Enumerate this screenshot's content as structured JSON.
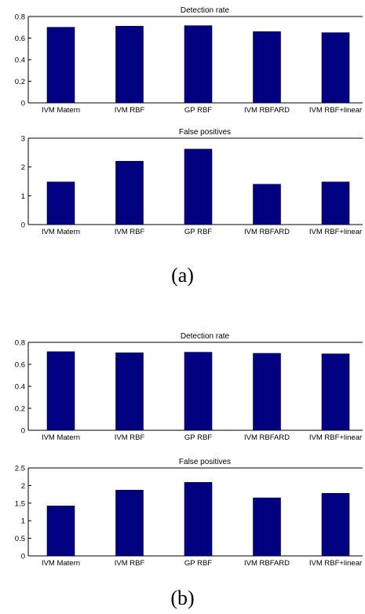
{
  "captions": {
    "a": "(a)",
    "b": "(b)"
  },
  "colors": {
    "bar": "#000080",
    "axis": "#000000"
  },
  "chart_data": [
    {
      "panel": "a",
      "type": "bar",
      "title": "Detection rate",
      "categories": [
        "IVM Matern",
        "IVM RBF",
        "GP RBF",
        "IVM RBFARD",
        "IVM RBF+linear"
      ],
      "values": [
        0.7,
        0.71,
        0.715,
        0.66,
        0.65
      ],
      "ylim": [
        0,
        0.8
      ],
      "yticks": [
        0,
        0.2,
        0.4,
        0.6,
        0.8
      ],
      "ytick_labels": [
        "0",
        "0.2",
        "0.4",
        "0.6",
        "0.8"
      ],
      "grid": false,
      "xlabel": "",
      "ylabel": ""
    },
    {
      "panel": "a",
      "type": "bar",
      "title": "False positives",
      "categories": [
        "IVM Matern",
        "IVM RBF",
        "GP RBF",
        "IVM RBFARD",
        "IVM RBF+linear"
      ],
      "values": [
        1.48,
        2.2,
        2.62,
        1.4,
        1.48
      ],
      "ylim": [
        0,
        3
      ],
      "yticks": [
        0,
        1,
        2,
        3
      ],
      "ytick_labels": [
        "0",
        "1",
        "2",
        "3"
      ],
      "grid": false,
      "xlabel": "",
      "ylabel": ""
    },
    {
      "panel": "b",
      "type": "bar",
      "title": "Detection rate",
      "categories": [
        "IVM Matern",
        "IVM RBF",
        "GP RBF",
        "IVM RBFARD",
        "IVM RBF+linear"
      ],
      "values": [
        0.715,
        0.705,
        0.71,
        0.7,
        0.695
      ],
      "ylim": [
        0,
        0.8
      ],
      "yticks": [
        0,
        0.2,
        0.4,
        0.6,
        0.8
      ],
      "ytick_labels": [
        "0",
        "0.2",
        "0.4",
        "0.6",
        "0.8"
      ],
      "grid": false,
      "xlabel": "",
      "ylabel": ""
    },
    {
      "panel": "b",
      "type": "bar",
      "title": "False positives",
      "categories": [
        "IVM Matern",
        "IVM RBF",
        "GP RBF",
        "IVM RBFARD",
        "IVM RBF+linear"
      ],
      "values": [
        1.42,
        1.87,
        2.09,
        1.65,
        1.78
      ],
      "ylim": [
        0,
        2.5
      ],
      "yticks": [
        0,
        0.5,
        1,
        1.5,
        2,
        2.5
      ],
      "ytick_labels": [
        "0",
        "0.5",
        "1",
        "1.5",
        "2",
        "2.5"
      ],
      "grid": false,
      "xlabel": "",
      "ylabel": ""
    }
  ]
}
